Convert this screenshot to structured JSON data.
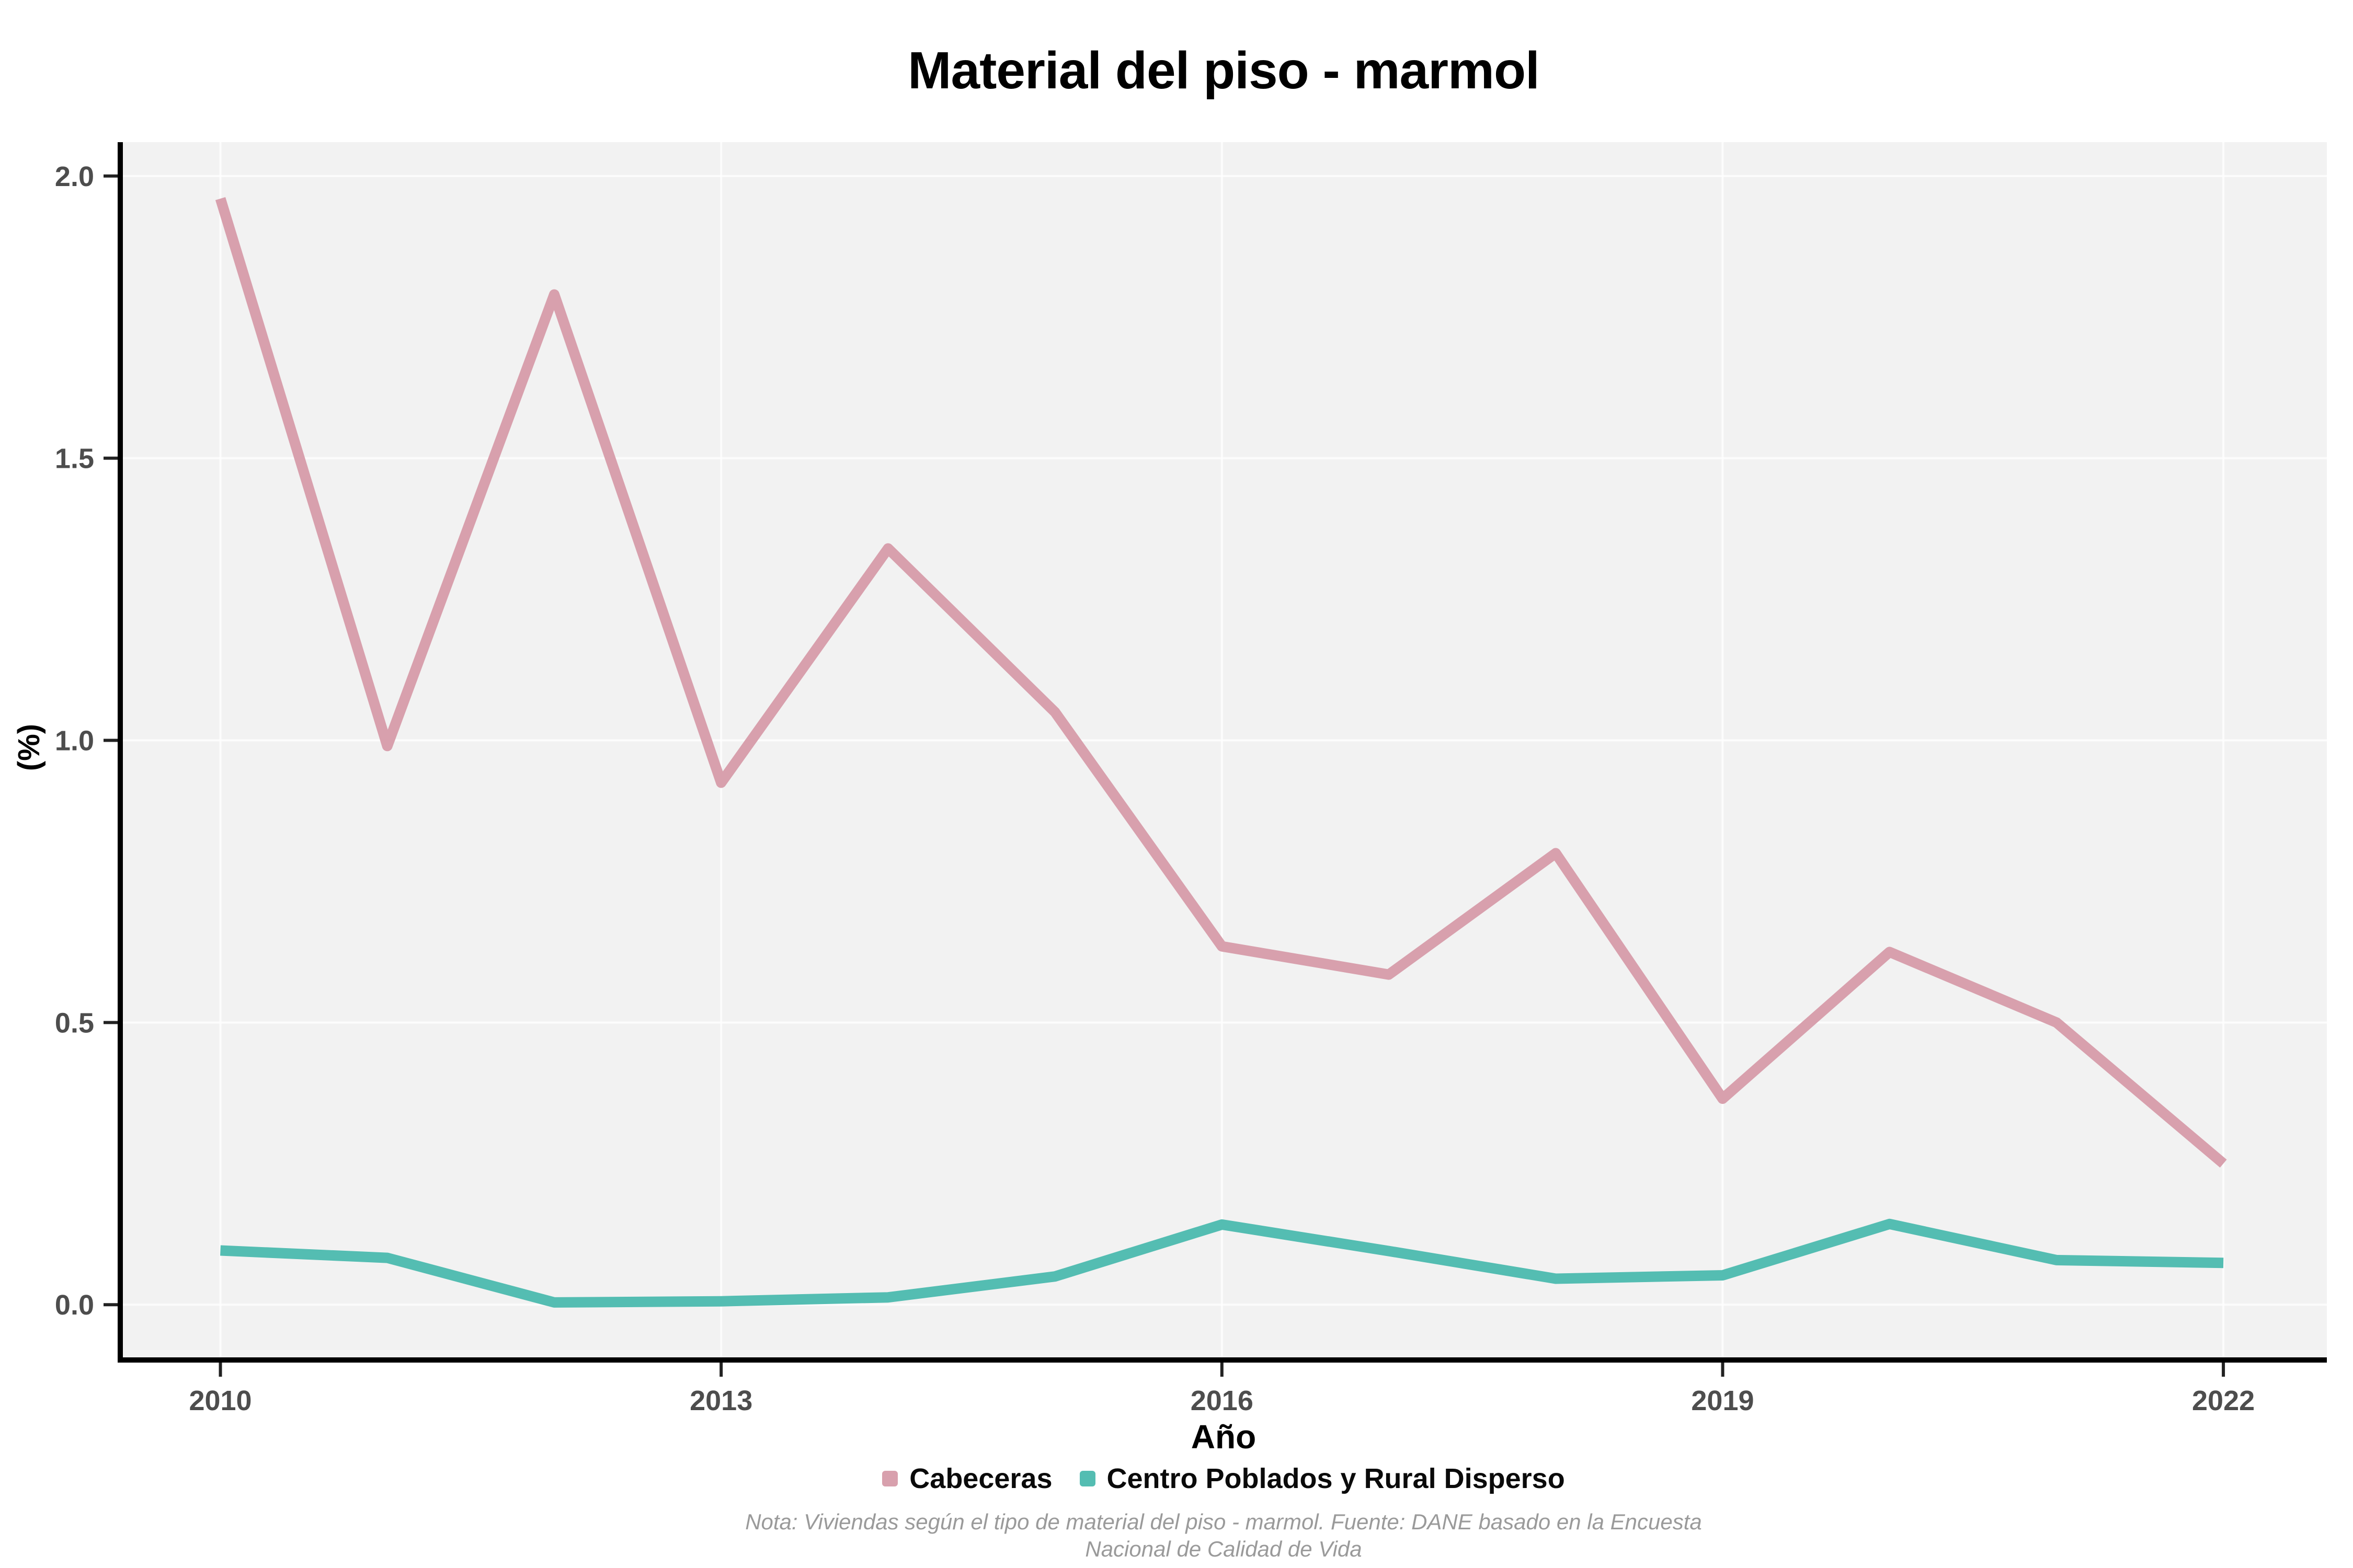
{
  "title": "Material del piso - marmol",
  "chart_data": {
    "type": "line",
    "x": [
      2010,
      2011,
      2012,
      2013,
      2014,
      2015,
      2016,
      2017,
      2018,
      2019,
      2020,
      2021,
      2022
    ],
    "series": [
      {
        "name": "Cabeceras",
        "color": "#d8a0ad",
        "values": [
          1.96,
          0.99,
          1.79,
          0.925,
          1.34,
          1.05,
          0.635,
          0.585,
          0.8,
          0.365,
          0.625,
          0.5,
          0.25
        ]
      },
      {
        "name": "Centro Poblados y Rural Disperso",
        "color": "#54bdb2",
        "values": [
          0.096,
          0.083,
          0.004,
          0.006,
          0.013,
          0.05,
          0.142,
          0.095,
          0.046,
          0.052,
          0.143,
          0.079,
          0.074
        ]
      }
    ],
    "title": "Material del piso - marmol",
    "xlabel": "Año",
    "ylabel": "(%)",
    "x_ticks": [
      2010,
      2013,
      2016,
      2019,
      2022
    ],
    "y_ticks": [
      "0.0",
      "0.5",
      "1.0",
      "1.5",
      "2.0"
    ],
    "xlim": [
      2009.4,
      2022.62
    ],
    "ylim": [
      -0.098,
      2.06
    ],
    "grid": "major white gridlines on light gray panel",
    "legend_position": "bottom"
  },
  "legend": {
    "items": [
      {
        "label": "Cabeceras",
        "color": "#d8a0ad"
      },
      {
        "label": "Centro Poblados y Rural Disperso",
        "color": "#54bdb2"
      }
    ]
  },
  "footnote": {
    "line1": "Nota: Viviendas según el tipo de material del piso - marmol. Fuente: DANE basado en la Encuesta",
    "line2": "Nacional de Calidad de Vida"
  },
  "colors": {
    "panel_background": "#f2f2f2",
    "gridline": "#ffffff",
    "axis_line": "#000000",
    "tick_label": "#4d4d4d"
  }
}
